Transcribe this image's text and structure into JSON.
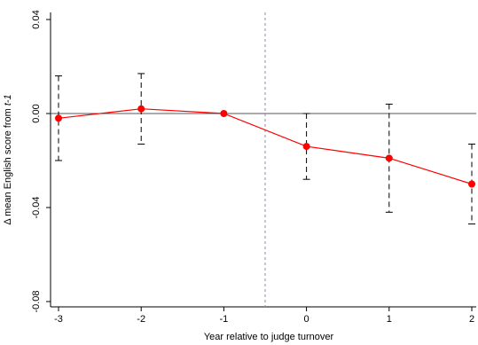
{
  "chart_data": {
    "type": "line",
    "xlabel": "Year relative to judge turnover",
    "ylabel_prefix": "Δ mean English score from ",
    "ylabel_italic": "t-1",
    "x_ticks": [
      -3,
      -2,
      -1,
      0,
      1,
      2
    ],
    "y_ticks": [
      0.04,
      0.0,
      -0.04,
      -0.08
    ],
    "y_tick_labels": [
      "0.04",
      "0.00",
      "-0.04",
      "-0.08"
    ],
    "xlim": [
      -3.0,
      2.0
    ],
    "ylim": [
      -0.08,
      0.04
    ],
    "reference_line_y": 0.0,
    "event_line_x": -0.5,
    "series": [
      {
        "x": [
          -3,
          -2,
          -1,
          0,
          1,
          2
        ],
        "y": [
          -0.002,
          0.002,
          0.0,
          -0.014,
          -0.019,
          -0.03
        ],
        "ci_low": [
          -0.02,
          -0.013,
          0.0,
          -0.028,
          -0.042,
          -0.047
        ],
        "ci_high": [
          0.016,
          0.017,
          0.0,
          0.0,
          0.004,
          -0.013
        ],
        "color": "#ff0000"
      }
    ],
    "grid": false,
    "legend": "none"
  }
}
